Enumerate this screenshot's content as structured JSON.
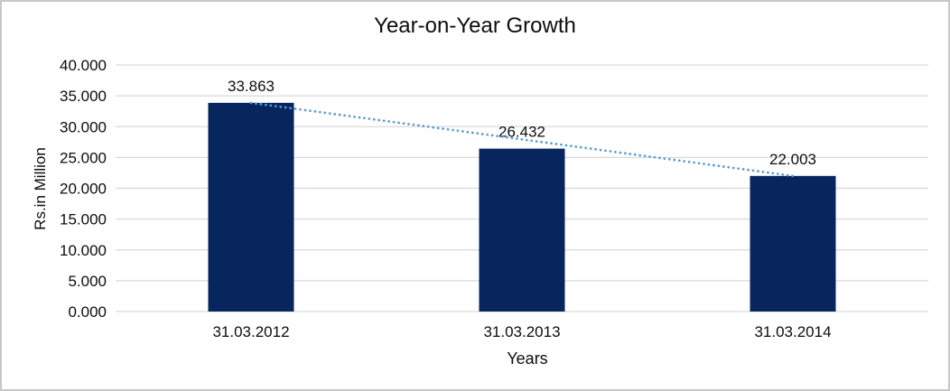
{
  "chart_data": {
    "type": "bar",
    "title": "Year-on-Year Growth",
    "xlabel": "Years",
    "ylabel": "Rs.in Million",
    "categories": [
      "31.03.2012",
      "31.03.2013",
      "31.03.2014"
    ],
    "values": [
      33.863,
      26.432,
      22.003
    ],
    "data_labels": [
      "33.863",
      "26.432",
      "22.003"
    ],
    "ylim": [
      0,
      40
    ],
    "ytick_step": 5,
    "ytick_labels": [
      "0.000",
      "5.000",
      "10.000",
      "15.000",
      "20.000",
      "25.000",
      "30.000",
      "35.000",
      "40.000"
    ],
    "grid": true,
    "legend": "none",
    "trendline": {
      "type": "linear",
      "style": "dotted",
      "from_value": 33.863,
      "to_value": 22.003
    },
    "colors": {
      "bar": "#08265E",
      "trendline": "#5B9BD5",
      "gridline": "#D9D9D9",
      "axis_line": "#D9D9D9",
      "text": "#0d0d0d",
      "frame_border": "#C8C8C8",
      "background": "#FFFFFF"
    }
  }
}
